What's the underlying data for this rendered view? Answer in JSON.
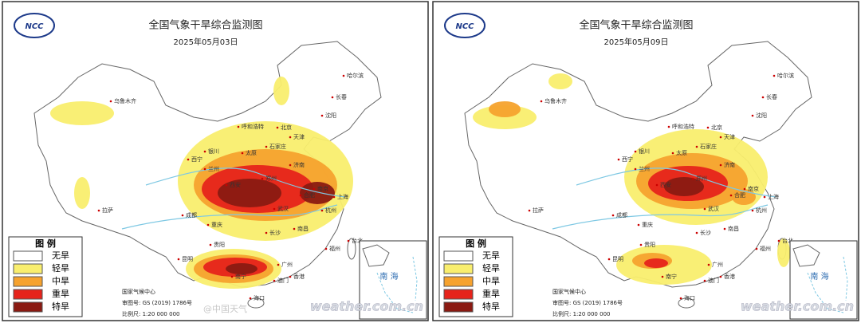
{
  "panels": [
    {
      "logo": "NCC",
      "title": "全国气象干旱综合监测图",
      "date": "2025年05月03日",
      "legend": {
        "title": "图 例",
        "items": [
          {
            "label": "无旱",
            "color": "#ffffff"
          },
          {
            "label": "轻旱",
            "color": "#f9ee6e"
          },
          {
            "label": "中旱",
            "color": "#f6a22e"
          },
          {
            "label": "重旱",
            "color": "#e6231b"
          },
          {
            "label": "特旱",
            "color": "#8a1a12"
          }
        ]
      },
      "south_sea": "南 海",
      "footer": [
        "国家气候中心",
        "审图号: GS (2019) 1786号",
        "比例尺: 1:20 000 000"
      ],
      "map_labels": [
        "乌鲁木齐",
        "哈尔滨",
        "长春",
        "沈阳",
        "呼和浩特",
        "北京",
        "天津",
        "石家庄",
        "太原",
        "银川",
        "西宁",
        "兰州",
        "济南",
        "郑州",
        "西安",
        "南京",
        "合肥",
        "上海",
        "杭州",
        "武汉",
        "成都",
        "重庆",
        "拉萨",
        "长沙",
        "南昌",
        "福州",
        "贵阳",
        "昆明",
        "南宁",
        "广州",
        "香港",
        "澳门",
        "海口",
        "台北"
      ],
      "watermark": "weather.com.cn"
    },
    {
      "logo": "NCC",
      "title": "全国气象干旱综合监测图",
      "date": "2025年05月09日",
      "legend": {
        "title": "图 例",
        "items": [
          {
            "label": "无旱",
            "color": "#ffffff"
          },
          {
            "label": "轻旱",
            "color": "#f9ee6e"
          },
          {
            "label": "中旱",
            "color": "#f6a22e"
          },
          {
            "label": "重旱",
            "color": "#e6231b"
          },
          {
            "label": "特旱",
            "color": "#8a1a12"
          }
        ]
      },
      "south_sea": "南 海",
      "footer": [
        "国家气候中心",
        "审图号: GS (2019) 1786号",
        "比例尺: 1:20 000 000"
      ],
      "map_labels": [
        "乌鲁木齐",
        "哈尔滨",
        "长春",
        "沈阳",
        "呼和浩特",
        "北京",
        "天津",
        "石家庄",
        "太原",
        "银川",
        "西宁",
        "兰州",
        "济南",
        "郑州",
        "西安",
        "南京",
        "合肥",
        "上海",
        "杭州",
        "武汉",
        "成都",
        "重庆",
        "拉萨",
        "长沙",
        "南昌",
        "福州",
        "贵阳",
        "昆明",
        "南宁",
        "广州",
        "香港",
        "澳门",
        "海口",
        "台北"
      ],
      "watermark": "weather.com.cn"
    }
  ],
  "weibo_watermark": "@中国天气"
}
